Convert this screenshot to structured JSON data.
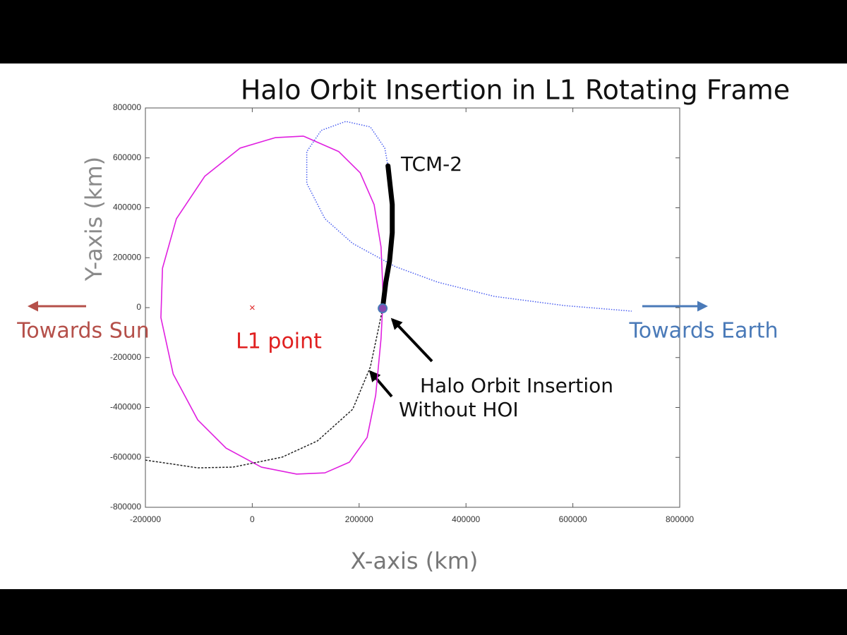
{
  "chart_data": {
    "type": "line",
    "title": "Halo Orbit Insertion in L1 Rotating Frame",
    "x_label": "X-axis (km)",
    "y_label": "Y-axis (km)",
    "xlim": [
      -200000,
      800000
    ],
    "ylim": [
      -800000,
      800000
    ],
    "xticks": [
      -200000,
      0,
      200000,
      400000,
      600000,
      800000
    ],
    "yticks": [
      -800000,
      -600000,
      -400000,
      -200000,
      0,
      200000,
      400000,
      600000,
      800000
    ],
    "series": [
      {
        "color": "#e020e0",
        "style": "solid",
        "x": [
          96000,
          162000,
          202000,
          228000,
          241000,
          245000,
          241000,
          231000,
          215000,
          182000,
          136000,
          83000,
          17000,
          -49000,
          -102000,
          -148000,
          -171000,
          -168000,
          -142000,
          -89000,
          -23000,
          43000,
          96000
        ],
        "values": [
          687000,
          625000,
          540000,
          413000,
          243000,
          45000,
          -124000,
          -351000,
          -520000,
          -619000,
          -662000,
          -667000,
          -639000,
          -563000,
          -450000,
          -266000,
          -40000,
          158000,
          356000,
          526000,
          639000,
          681000,
          687000
        ]
      },
      {
        "color": "#4a5ef0",
        "style": "dotted",
        "x": [
          254000,
          248000,
          221000,
          175000,
          129000,
          102000,
          102000,
          136000,
          188000,
          268000,
          347000,
          453000,
          585000,
          710000
        ],
        "values": [
          568000,
          639000,
          724000,
          746000,
          710000,
          625000,
          498000,
          356000,
          257000,
          164000,
          102000,
          45000,
          8000,
          -14000
        ]
      },
      {
        "color": "#222222",
        "style": "dashed",
        "x": [
          244000,
          235000,
          221000,
          188000,
          122000,
          56000,
          -36000,
          -102000,
          -155000,
          -200000
        ],
        "values": [
          -3000,
          -96000,
          -238000,
          -407000,
          -534000,
          -599000,
          -639000,
          -642000,
          -625000,
          -611000
        ]
      },
      {
        "color": "#000000",
        "style": "bold",
        "x": [
          254000,
          262000,
          262000,
          257000,
          250000,
          244000
        ],
        "values": [
          568000,
          413000,
          300000,
          187000,
          102000,
          -3000
        ]
      }
    ],
    "markers": [
      {
        "x": 0,
        "y": 0,
        "shape": "x",
        "color": "#e03030"
      },
      {
        "x": 244000,
        "y": -3000,
        "shape": "circle",
        "color": "#8a4ab0"
      }
    ],
    "annotations": [
      "TCM-2",
      "Halo Orbit Insertion",
      "Without HOI",
      "L1 point",
      "Towards Sun",
      "Towards Earth"
    ]
  }
}
